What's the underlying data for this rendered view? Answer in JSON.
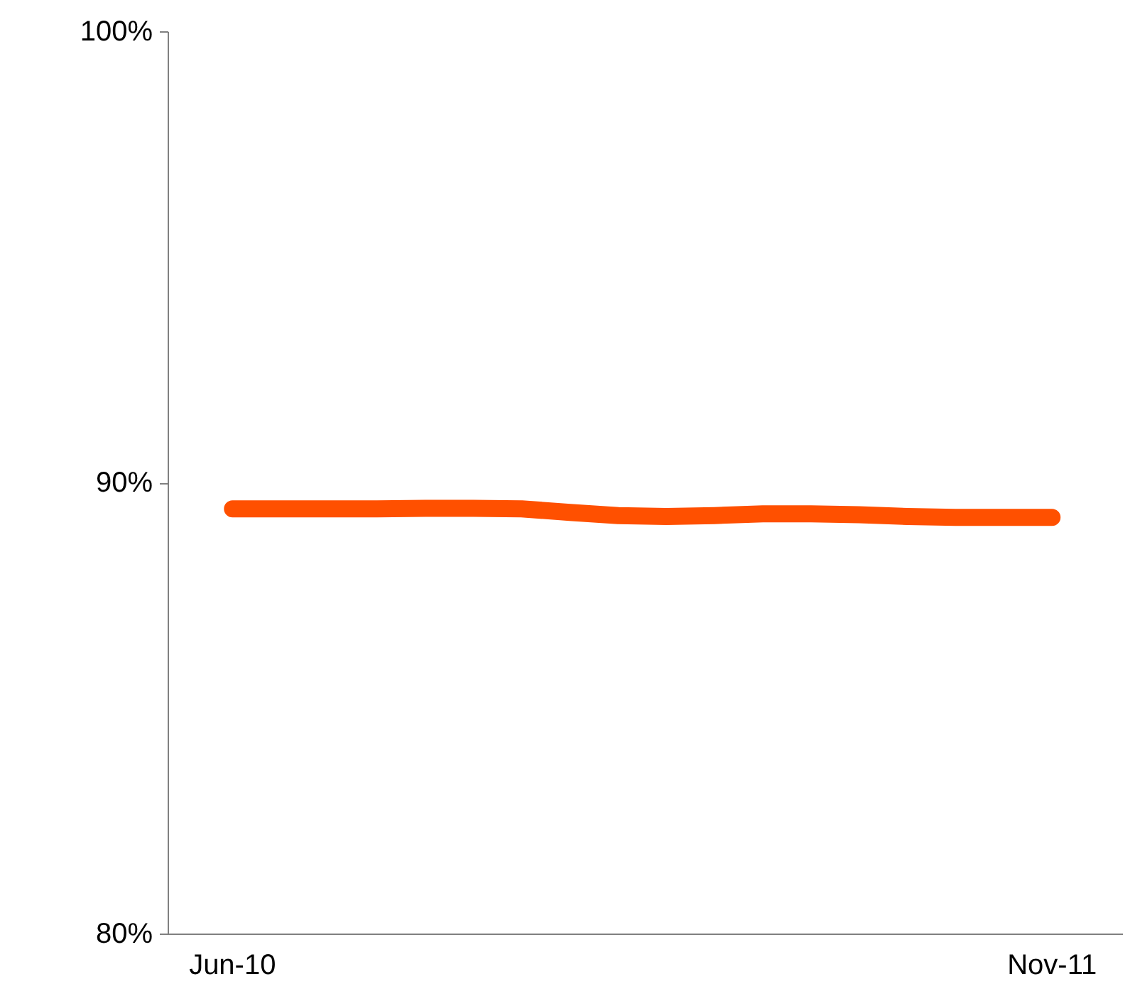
{
  "chart_data": {
    "type": "line",
    "categories": [
      "Jun-10",
      null,
      null,
      null,
      null,
      null,
      null,
      null,
      null,
      null,
      null,
      null,
      null,
      null,
      null,
      null,
      null,
      "Nov-11"
    ],
    "series": [
      {
        "color": "#ff5000",
        "values": [
          89.43,
          89.43,
          89.43,
          89.43,
          89.44,
          89.44,
          89.43,
          89.35,
          89.28,
          89.26,
          89.28,
          89.32,
          89.32,
          89.3,
          89.26,
          89.24,
          89.24,
          89.24
        ]
      }
    ],
    "ylim": [
      80,
      100
    ],
    "yticks": [
      {
        "value": 80,
        "label": "80%"
      },
      {
        "value": 90,
        "label": "90%"
      },
      {
        "value": 100,
        "label": "100%"
      }
    ],
    "grid": false,
    "marker": "none",
    "line_style": "solid"
  }
}
